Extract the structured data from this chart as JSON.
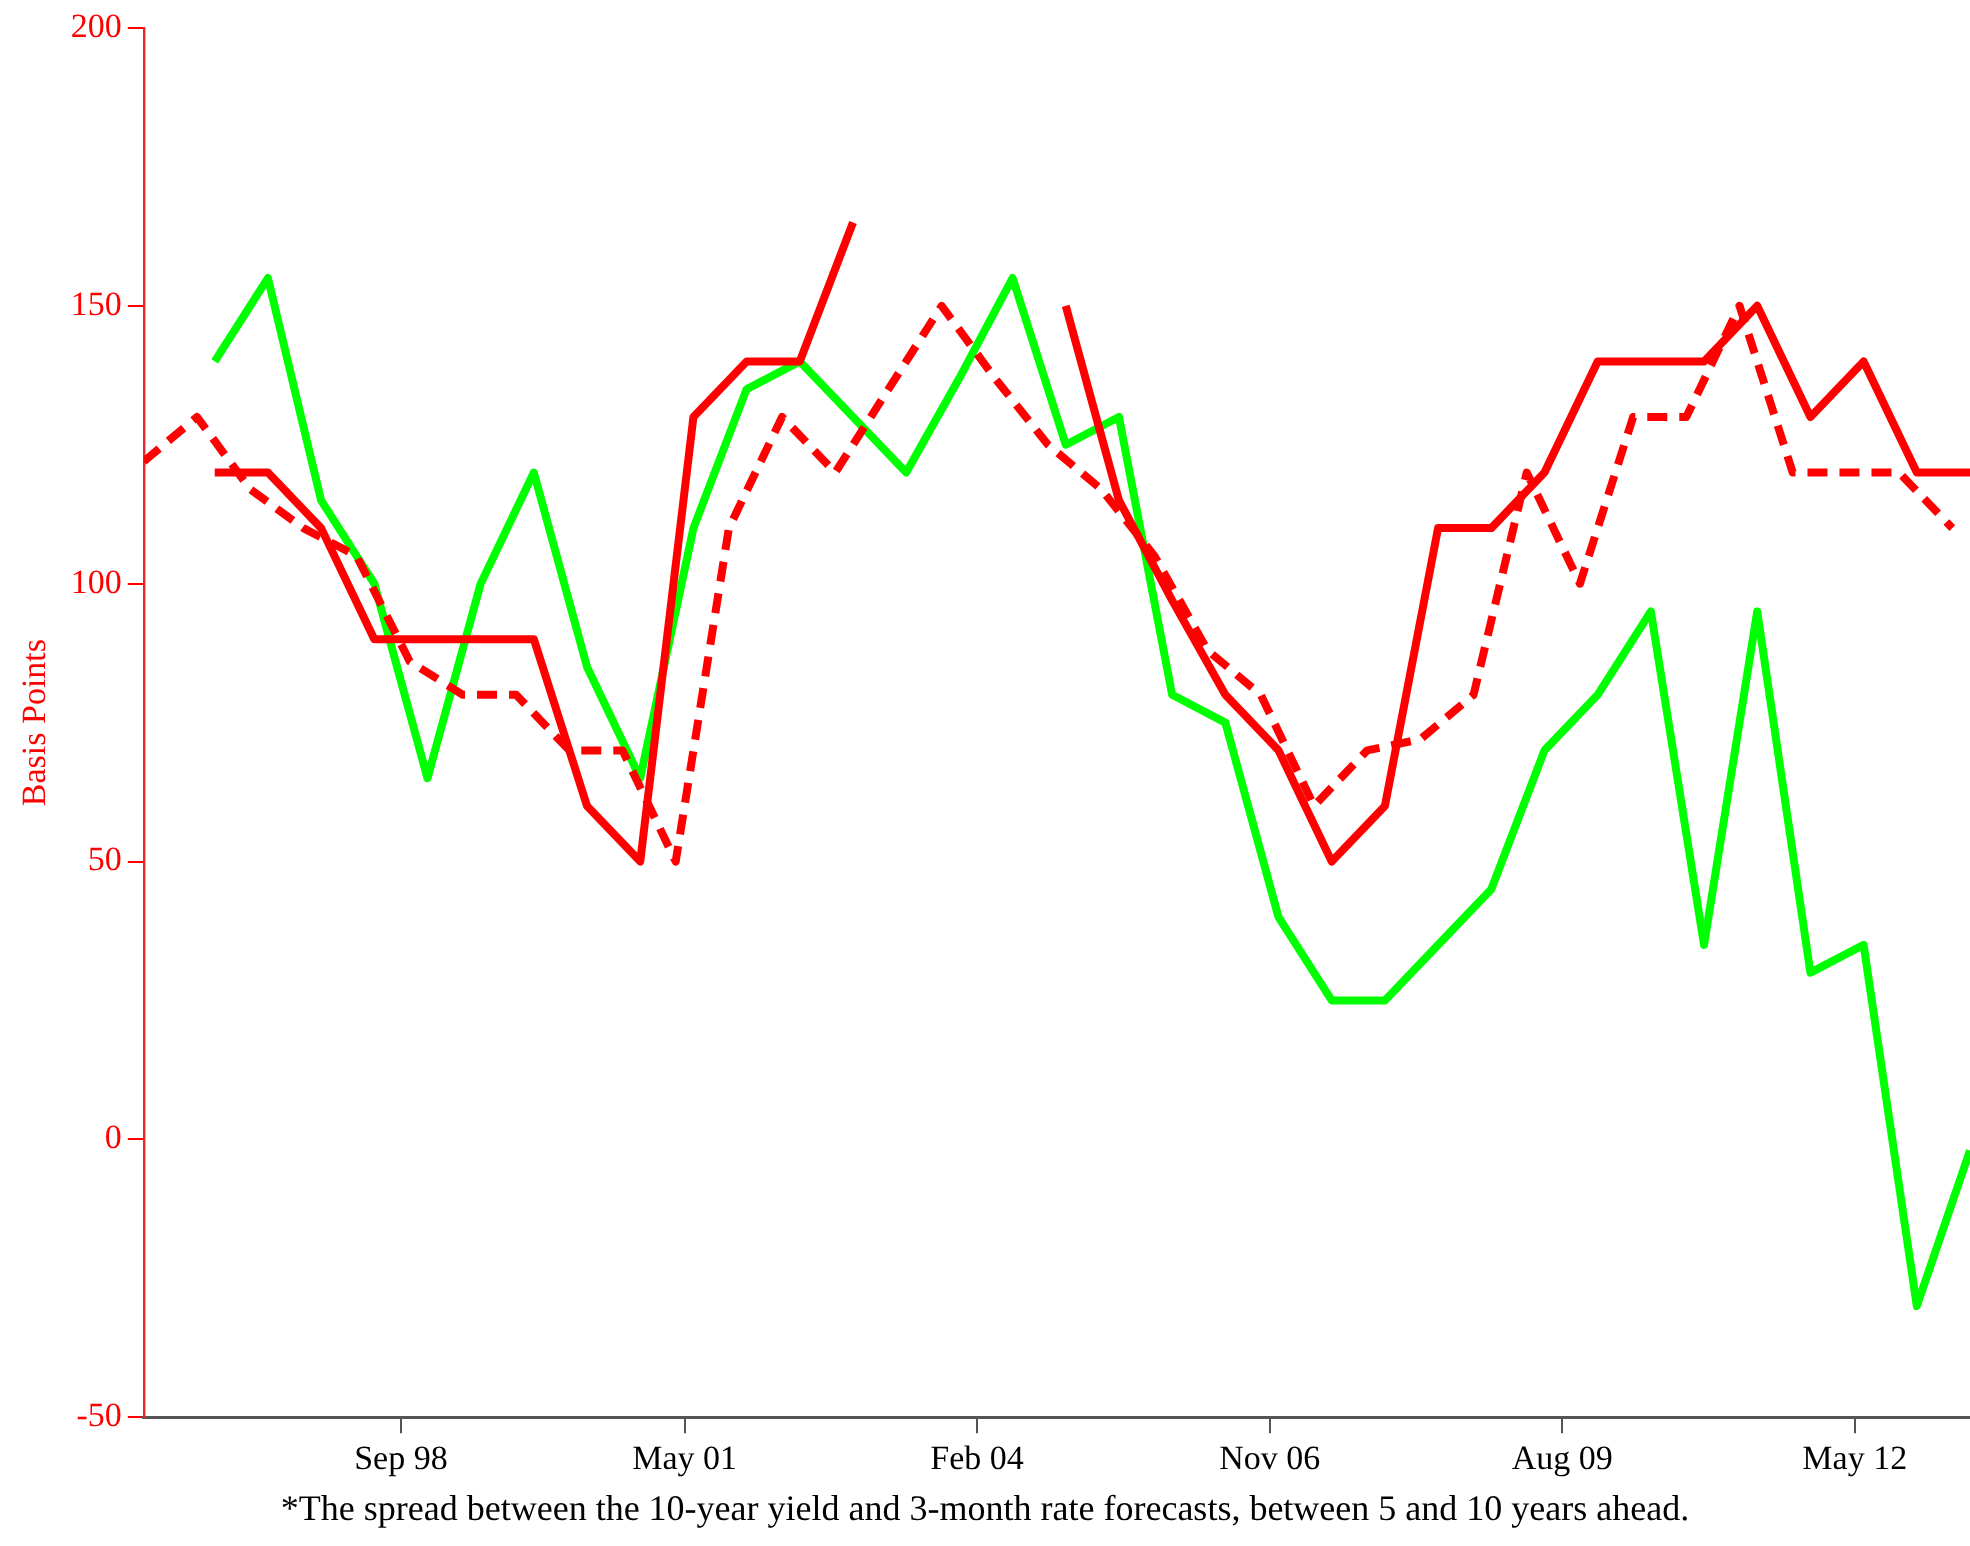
{
  "chart_data": {
    "type": "line",
    "ylabel": "Basis Points",
    "annotations": [
      "*The spread between the 10-year yield and 3-month rate forecasts, between 5 and 10 years ahead."
    ],
    "xlim": [
      "1996-04",
      "2013-06"
    ],
    "xticks": [
      {
        "value": "1998-09",
        "label": "Sep 98"
      },
      {
        "value": "2001-05",
        "label": "May 01"
      },
      {
        "value": "2004-02",
        "label": "Feb 04"
      },
      {
        "value": "2006-11",
        "label": "Nov 06"
      },
      {
        "value": "2009-08",
        "label": "Aug 09"
      },
      {
        "value": "2012-05",
        "label": "May 12"
      }
    ],
    "ylim": [
      -50,
      200
    ],
    "yticks": [
      -50,
      0,
      50,
      100,
      150,
      200
    ],
    "marker": "none",
    "series": [
      {
        "color": "#ff0000",
        "line_style": "solid",
        "x": [
          "1996-12",
          "1997-06",
          "1997-12",
          "1998-06",
          "1998-12",
          "1999-06",
          "1999-12",
          "2000-06",
          "2000-12",
          "2001-06",
          "2001-12",
          "2002-06",
          "2002-12",
          "2003-06",
          "2003-12",
          "2004-06",
          "2004-12",
          "2005-06",
          "2005-12",
          "2006-06",
          "2006-12",
          "2007-06",
          "2007-12",
          "2008-06",
          "2008-12",
          "2009-06",
          "2009-12",
          "2010-06",
          "2010-12",
          "2011-06",
          "2011-12",
          "2012-06",
          "2012-12",
          "2013-06"
        ],
        "values": [
          120,
          120,
          110,
          90,
          90,
          90,
          90,
          60,
          50,
          130,
          140,
          140,
          165,
          null,
          null,
          null,
          150,
          115,
          97,
          80,
          70,
          50,
          60,
          110,
          110,
          120,
          140,
          140,
          140,
          150,
          130,
          140,
          120,
          120
        ]
      },
      {
        "color": "#ff0000",
        "line_style": "dashed",
        "x": [
          "1996-04",
          "1996-10",
          "1997-04",
          "1997-10",
          "1998-04",
          "1998-10",
          "1999-04",
          "1999-10",
          "2000-04",
          "2000-10",
          "2001-04",
          "2001-10",
          "2002-04",
          "2002-10",
          "2003-04",
          "2003-10",
          "2004-04",
          "2004-10",
          "2005-04",
          "2005-10",
          "2006-04",
          "2006-10",
          "2007-04",
          "2007-10",
          "2008-04",
          "2008-10",
          "2009-04",
          "2009-10",
          "2010-04",
          "2010-10",
          "2011-04",
          "2011-10",
          "2012-04",
          "2012-10",
          "2013-04"
        ],
        "values": [
          122,
          130,
          117,
          110,
          105,
          86,
          80,
          80,
          70,
          70,
          50,
          110,
          130,
          120,
          135,
          150,
          137,
          125,
          117,
          105,
          88,
          80,
          60,
          70,
          72,
          80,
          120,
          100,
          130,
          130,
          150,
          120,
          120,
          120,
          110
        ]
      },
      {
        "color": "#00ff00",
        "line_style": "solid",
        "x": [
          "1996-12",
          "1997-06",
          "1997-12",
          "1998-06",
          "1998-12",
          "1999-06",
          "1999-12",
          "2000-06",
          "2000-12",
          "2001-06",
          "2001-12",
          "2002-06",
          "2002-12",
          "2003-06",
          "2003-12",
          "2004-06",
          "2004-12",
          "2005-06",
          "2005-12",
          "2006-06",
          "2006-12",
          "2007-06",
          "2007-12",
          "2008-06",
          "2008-12",
          "2009-06",
          "2009-12",
          "2010-06",
          "2010-12",
          "2011-06",
          "2011-12",
          "2012-06",
          "2012-12",
          "2013-06"
        ],
        "values": [
          140,
          155,
          115,
          100,
          65,
          100,
          120,
          85,
          65,
          110,
          135,
          140,
          130,
          120,
          137,
          155,
          125,
          130,
          80,
          75,
          40,
          25,
          25,
          35,
          45,
          70,
          80,
          95,
          35,
          95,
          30,
          35,
          -30,
          -2
        ]
      }
    ]
  }
}
